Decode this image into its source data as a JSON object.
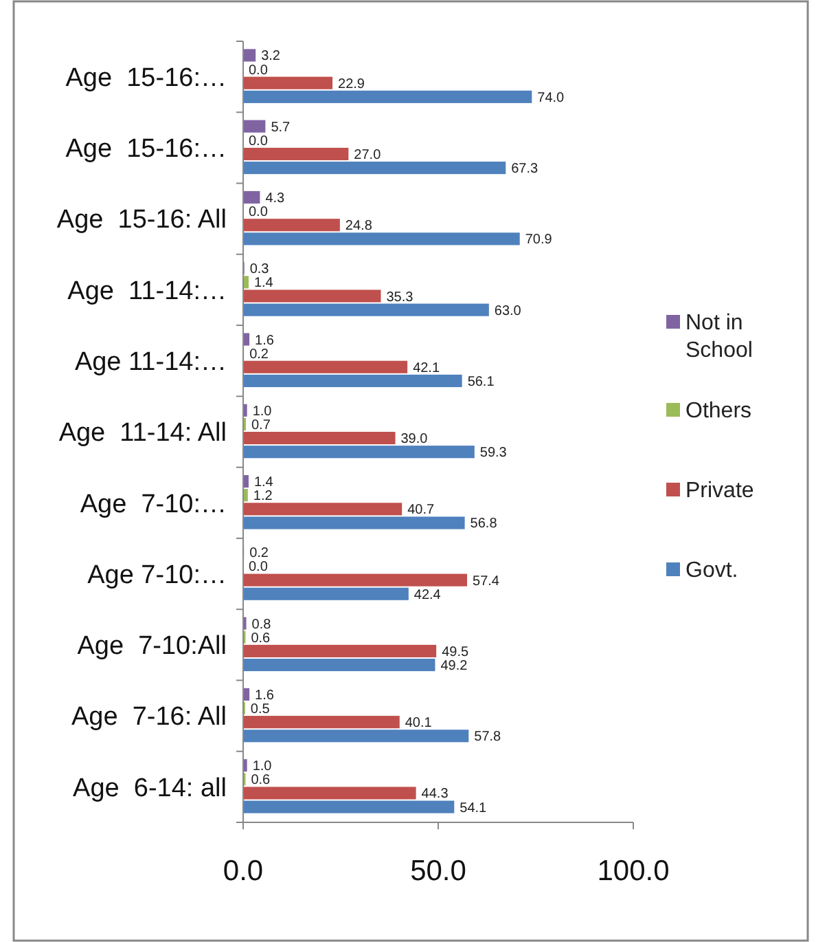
{
  "chart_data": {
    "type": "bar",
    "orientation": "horizontal",
    "categories": [
      "Age  15-16:…",
      "Age  15-16:…",
      "Age  15-16: All",
      "Age  11-14:…",
      "Age 11-14:…",
      "Age  11-14: All",
      "Age  7-10:…",
      "Age 7-10:…",
      "Age  7-10:All",
      "Age  7-16: All",
      "Age  6-14: all"
    ],
    "series": [
      {
        "name": "Govt.",
        "color": "#4f81bd",
        "values": [
          74.0,
          67.3,
          70.9,
          63.0,
          56.1,
          59.3,
          56.8,
          42.4,
          49.2,
          57.8,
          54.1
        ],
        "value_labels": [
          "74.0",
          "67.3",
          "70.9",
          "63.0",
          "56.1",
          "59.3",
          "56.8",
          "42.4",
          "49.2",
          "57.8",
          "54.1"
        ]
      },
      {
        "name": "Private",
        "color": "#c0504d",
        "values": [
          22.9,
          27.0,
          24.8,
          35.3,
          42.1,
          39.0,
          40.7,
          57.4,
          49.5,
          40.1,
          44.3
        ],
        "value_labels": [
          "22.9",
          "27.0",
          "24.8",
          "35.3",
          "42.1",
          "39.0",
          "40.7",
          "57.4",
          "49.5",
          "40.1",
          "44.3"
        ]
      },
      {
        "name": "Others",
        "color": "#9bbb59",
        "values": [
          0.0,
          0.0,
          0.0,
          1.4,
          0.2,
          0.7,
          1.2,
          0.0,
          0.6,
          0.5,
          0.6
        ],
        "value_labels": [
          "0.0",
          "0.0",
          "0.0",
          "1.4",
          "0.2",
          "0.7",
          "1.2",
          "0.0",
          "0.6",
          "0.5",
          "0.6"
        ]
      },
      {
        "name": "Not in School",
        "color": "#8064a2",
        "values": [
          3.2,
          5.7,
          4.3,
          0.3,
          1.6,
          1.0,
          1.4,
          0.2,
          0.8,
          1.6,
          1.0
        ],
        "value_labels": [
          "3.2",
          "5.7",
          "4.3",
          "0.3",
          "1.6",
          "1.0",
          "1.4",
          "0.2",
          "0.8",
          "1.6",
          "1.0"
        ]
      }
    ],
    "xlim": [
      0,
      100
    ],
    "xticks": [
      {
        "value": 0,
        "label": "0.0"
      },
      {
        "value": 50,
        "label": "50.0"
      },
      {
        "value": 100,
        "label": "100.0"
      }
    ],
    "grid": false,
    "legend": "right"
  }
}
